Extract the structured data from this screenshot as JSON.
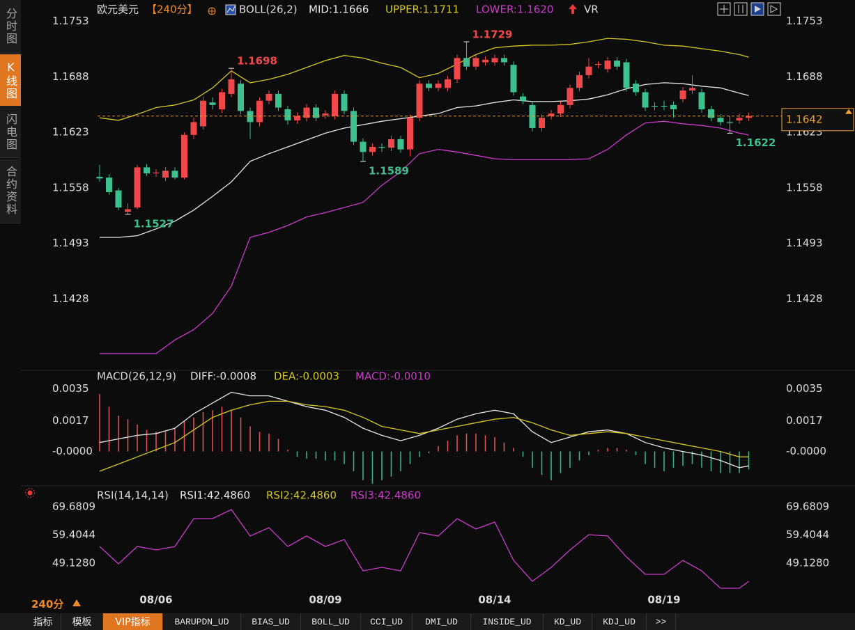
{
  "sidebar_tabs": [
    "分时图",
    "K线图",
    "闪电图",
    "合约资料"
  ],
  "header": {
    "symbol": "欧元美元",
    "period": "【240分】",
    "indicator": "BOLL(26,2)",
    "extra": "VR"
  },
  "price_panel": {
    "type": "candlestick",
    "categories": [
      null,
      null,
      null,
      null,
      null,
      null,
      "08/06",
      null,
      null,
      null,
      null,
      null,
      null,
      null,
      null,
      null,
      null,
      null,
      null,
      null,
      null,
      null,
      null,
      null,
      "08/09",
      null,
      null,
      null,
      null,
      null,
      null,
      null,
      null,
      null,
      null,
      null,
      null,
      null,
      null,
      null,
      null,
      null,
      "08/14",
      null,
      null,
      null,
      null,
      null,
      null,
      null,
      null,
      null,
      null,
      null,
      null,
      null,
      null,
      null,
      null,
      null,
      "08/19",
      null,
      null,
      null,
      null,
      null,
      null,
      null,
      null,
      null
    ],
    "candles": [
      [
        1.1571,
        1.1585,
        1.1565,
        1.1569
      ],
      [
        1.157,
        1.1574,
        1.155,
        1.1553
      ],
      [
        1.1555,
        1.1558,
        1.1532,
        1.1535
      ],
      [
        1.153,
        1.154,
        1.1527,
        1.1533
      ],
      [
        1.1535,
        1.1585,
        1.1533,
        1.1582
      ],
      [
        1.1582,
        1.1586,
        1.1572,
        1.1575
      ],
      [
        1.1575,
        1.158,
        1.1571,
        1.1576
      ],
      [
        1.157,
        1.1582,
        1.1566,
        1.1578
      ],
      [
        1.1578,
        1.1582,
        1.1568,
        1.157
      ],
      [
        1.157,
        1.1623,
        1.1568,
        1.162
      ],
      [
        1.162,
        1.164,
        1.1615,
        1.1635
      ],
      [
        1.163,
        1.1665,
        1.1626,
        1.166
      ],
      [
        1.1658,
        1.1664,
        1.165,
        1.1655
      ],
      [
        1.165,
        1.1674,
        1.1646,
        1.167
      ],
      [
        1.1668,
        1.1698,
        1.1664,
        1.1685
      ],
      [
        1.168,
        1.1684,
        1.1644,
        1.1648
      ],
      [
        1.1648,
        1.1652,
        1.1615,
        1.1635
      ],
      [
        1.1635,
        1.1664,
        1.163,
        1.166
      ],
      [
        1.166,
        1.1672,
        1.1656,
        1.1668
      ],
      [
        1.1668,
        1.1672,
        1.1648,
        1.1652
      ],
      [
        1.165,
        1.1654,
        1.1632,
        1.1637
      ],
      [
        1.1637,
        1.1646,
        1.1633,
        1.1642
      ],
      [
        1.164,
        1.1656,
        1.1636,
        1.1652
      ],
      [
        1.1652,
        1.1656,
        1.1636,
        1.164
      ],
      [
        1.1643,
        1.1649,
        1.1639,
        1.1645
      ],
      [
        1.1642,
        1.1672,
        1.1638,
        1.1668
      ],
      [
        1.1668,
        1.1672,
        1.1644,
        1.1648
      ],
      [
        1.1648,
        1.1652,
        1.1608,
        1.1612
      ],
      [
        1.1612,
        1.1616,
        1.1589,
        1.16
      ],
      [
        1.16,
        1.161,
        1.1596,
        1.1606
      ],
      [
        1.1606,
        1.161,
        1.16,
        1.1605
      ],
      [
        1.1605,
        1.1619,
        1.1601,
        1.1615
      ],
      [
        1.1615,
        1.1619,
        1.1599,
        1.1603
      ],
      [
        1.1603,
        1.1644,
        1.1595,
        1.164
      ],
      [
        1.164,
        1.1684,
        1.1636,
        1.168
      ],
      [
        1.168,
        1.1684,
        1.1671,
        1.1675
      ],
      [
        1.1675,
        1.1684,
        1.1671,
        1.168
      ],
      [
        1.1675,
        1.1689,
        1.1671,
        1.1685
      ],
      [
        1.1685,
        1.1714,
        1.1681,
        1.171
      ],
      [
        1.171,
        1.1729,
        1.1696,
        1.17
      ],
      [
        1.17,
        1.1714,
        1.1696,
        1.171
      ],
      [
        1.1705,
        1.1712,
        1.1701,
        1.1708
      ],
      [
        1.1705,
        1.1714,
        1.1701,
        1.171
      ],
      [
        1.171,
        1.1714,
        1.1701,
        1.1705
      ],
      [
        1.1702,
        1.1706,
        1.1666,
        1.167
      ],
      [
        1.1665,
        1.1669,
        1.1656,
        1.166
      ],
      [
        1.1655,
        1.1659,
        1.1624,
        1.1628
      ],
      [
        1.1628,
        1.1644,
        1.1624,
        1.164
      ],
      [
        1.1642,
        1.1649,
        1.1638,
        1.1645
      ],
      [
        1.1645,
        1.1659,
        1.1641,
        1.1655
      ],
      [
        1.1655,
        1.1679,
        1.1651,
        1.1675
      ],
      [
        1.1675,
        1.1694,
        1.1671,
        1.169
      ],
      [
        1.169,
        1.171,
        1.1686,
        1.17
      ],
      [
        1.1702,
        1.1706,
        1.1698,
        1.1703
      ],
      [
        1.1697,
        1.1711,
        1.1693,
        1.1707
      ],
      [
        1.1707,
        1.1711,
        1.1696,
        1.17
      ],
      [
        1.1705,
        1.1709,
        1.1671,
        1.1675
      ],
      [
        1.168,
        1.1684,
        1.1666,
        1.167
      ],
      [
        1.167,
        1.1674,
        1.1648,
        1.1652
      ],
      [
        1.1654,
        1.1658,
        1.1649,
        1.1653
      ],
      [
        1.1654,
        1.166,
        1.1649,
        1.1653
      ],
      [
        1.1655,
        1.1659,
        1.164,
        1.165
      ],
      [
        1.1662,
        1.1676,
        1.1658,
        1.1672
      ],
      [
        1.1672,
        1.169,
        1.1668,
        1.1675
      ],
      [
        1.167,
        1.1674,
        1.1646,
        1.165
      ],
      [
        1.165,
        1.1654,
        1.1636,
        1.164
      ],
      [
        1.164,
        1.1644,
        1.1631,
        1.1635
      ],
      [
        1.1635,
        1.1642,
        1.1622,
        1.1634
      ],
      [
        1.1637,
        1.1645,
        1.1633,
        1.164
      ],
      [
        1.164,
        1.1646,
        1.1636,
        1.1642
      ]
    ],
    "up_color": "#f0484a",
    "down_color": "#3cc08f",
    "ylim": [
      1.1346,
      1.176
    ],
    "yticks": [
      1.1753,
      1.1688,
      1.1623,
      1.1558,
      1.1493,
      1.1428
    ],
    "line_x": [
      0,
      2,
      4,
      6,
      8,
      10,
      12,
      14,
      16,
      18,
      20,
      22,
      24,
      26,
      28,
      30,
      32,
      34,
      36,
      38,
      40,
      42,
      44,
      46,
      48,
      50,
      52,
      54,
      56,
      58,
      60,
      62,
      64,
      66,
      68,
      69
    ],
    "series": [
      {
        "label": "MID:1.1666",
        "color": "#e8e8e8",
        "values": [
          1.15,
          1.15,
          1.1502,
          1.151,
          1.1519,
          1.1532,
          1.1548,
          1.1565,
          1.1589,
          1.1598,
          1.1606,
          1.1614,
          1.1622,
          1.1628,
          1.1632,
          1.1636,
          1.1639,
          1.1642,
          1.1645,
          1.1652,
          1.1654,
          1.1658,
          1.1661,
          1.1659,
          1.1659,
          1.166,
          1.1662,
          1.1667,
          1.1674,
          1.1679,
          1.1681,
          1.168,
          1.1677,
          1.1675,
          1.1669,
          1.1666
        ]
      },
      {
        "label": "UPPER:1.1711",
        "color": "#d7c81e",
        "values": [
          1.164,
          1.1637,
          1.1644,
          1.1652,
          1.1655,
          1.1661,
          1.1675,
          1.1695,
          1.1681,
          1.1685,
          1.1691,
          1.1699,
          1.1707,
          1.1713,
          1.171,
          1.1704,
          1.1699,
          1.1687,
          1.1692,
          1.1703,
          1.1714,
          1.1722,
          1.1724,
          1.1725,
          1.1725,
          1.1726,
          1.1729,
          1.1733,
          1.1732,
          1.1729,
          1.1725,
          1.1724,
          1.1721,
          1.1718,
          1.1714,
          1.1711
        ]
      },
      {
        "label": "LOWER:1.1620",
        "color": "#cc3ccc",
        "values": [
          1.1364,
          1.1364,
          1.1364,
          1.1364,
          1.138,
          1.1392,
          1.1411,
          1.1443,
          1.15,
          1.1506,
          1.1514,
          1.1524,
          1.1529,
          1.1535,
          1.1541,
          1.1561,
          1.1577,
          1.1598,
          1.1603,
          1.16,
          1.1596,
          1.1592,
          1.1591,
          1.1591,
          1.1591,
          1.1591,
          1.1592,
          1.1603,
          1.162,
          1.1634,
          1.1636,
          1.1633,
          1.1631,
          1.1628,
          1.1622,
          1.162
        ]
      }
    ],
    "extreme_labels": [
      1.1698,
      1.1729,
      1.1527,
      1.1589,
      1.1622
    ],
    "last_price": 1.1642,
    "last_price_color": "#f0a030"
  },
  "macd_panel": {
    "type": "macd",
    "title": "MACD(26,12,9)",
    "ylim": [
      -0.0018,
      0.0039
    ],
    "yticks": [
      0.0035,
      0.0017,
      {
        "value": 0,
        "label": "-0.0000"
      }
    ],
    "series": [
      {
        "label": "DIFF:-0.0008",
        "color": "#e8e8e8",
        "values": [
          0.0005,
          0.0007,
          0.0009,
          0.001,
          0.0013,
          0.0021,
          0.0027,
          0.0033,
          0.0031,
          0.0031,
          0.0028,
          0.0025,
          0.0023,
          0.0019,
          0.0013,
          0.0009,
          0.0006,
          0.0009,
          0.0013,
          0.0018,
          0.0021,
          0.0023,
          0.0021,
          0.0011,
          0.0005,
          0.0008,
          0.0011,
          0.0012,
          0.001,
          0.0005,
          0.0002,
          0,
          -0.0002,
          -0.0005,
          -0.0009,
          -0.0008
        ]
      },
      {
        "label": "DEA:-0.0003",
        "color": "#d7c81e",
        "values": [
          -0.0011,
          -0.0007,
          -0.0003,
          0.0001,
          0.0005,
          0.0012,
          0.0019,
          0.0023,
          0.0026,
          0.0028,
          0.0028,
          0.0026,
          0.0025,
          0.0023,
          0.0019,
          0.0014,
          0.0012,
          0.001,
          0.0012,
          0.0014,
          0.0016,
          0.0018,
          0.0019,
          0.0016,
          0.0012,
          0.0009,
          0.001,
          0.0011,
          0.001,
          0.0008,
          0.0006,
          0.0004,
          0.0002,
          0,
          -0.0003,
          -0.0003
        ]
      }
    ],
    "histogram": {
      "label": "MACD:-0.0010",
      "color": "#cc3ccc",
      "up_color": "#e05050",
      "down_color": "#3cb08a",
      "values": [
        0.0032,
        0.0025,
        0.002,
        0.0018,
        0.0015,
        0.0012,
        0.0011,
        0.0011,
        0.0013,
        0.0017,
        0.0019,
        0.0022,
        0.0023,
        0.0025,
        0.0023,
        0.0019,
        0.0014,
        0.0011,
        0.001,
        0.0007,
        0.0001,
        -0.0003,
        -0.0004,
        -0.0004,
        -0.0005,
        -0.0005,
        -0.0007,
        -0.0011,
        -0.0016,
        -0.0018,
        -0.0016,
        -0.0014,
        -0.0011,
        -0.0007,
        -0.0003,
        -0.0001,
        0.0003,
        0.0006,
        0.0009,
        0.001,
        0.001,
        0.0009,
        0.0008,
        0.0005,
        0.0002,
        -0.0003,
        -0.0009,
        -0.0013,
        -0.0016,
        -0.0012,
        -0.0009,
        -0.0005,
        -0.0002,
        0.0001,
        0.0002,
        0.0002,
        0.0001,
        -0.0002,
        -0.0007,
        -0.0009,
        -0.0011,
        -0.0009,
        -0.0008,
        -0.0007,
        -0.0009,
        -0.0011,
        -0.0012,
        -0.0012,
        -0.0012,
        -0.001
      ]
    }
  },
  "rsi_panel": {
    "type": "line",
    "title": "RSI(14,14,14)",
    "ylim": [
      37.45,
      72.22
    ],
    "yticks": [
      69.6809,
      59.4044,
      {
        "value": 49.128,
        "label": "49.1280"
      }
    ],
    "legend": [
      {
        "label": "RSI1:42.4860",
        "color": "#e8e8e8"
      },
      {
        "label": "RSI2:42.4860",
        "color": "#d7c81e"
      },
      {
        "label": "RSI3:42.4860",
        "color": "#cc3ccc"
      }
    ],
    "color": "#cc3ccc",
    "values": [
      55.21,
      48.87,
      55.21,
      53.94,
      55.21,
      65.37,
      65.37,
      68.67,
      59.02,
      62.07,
      55.21,
      59.02,
      55.21,
      57.75,
      46.33,
      47.6,
      46.33,
      60.29,
      59.02,
      65.37,
      61.56,
      64.1,
      50.14,
      42.52,
      47.6,
      53.94,
      59.53,
      59.02,
      51.41,
      45.06,
      45.06,
      50.14,
      46.33,
      39.99,
      39.99,
      42.49
    ]
  },
  "footer": {
    "period": "240分",
    "bottom_tabs": [
      "指标",
      "模板",
      "VIP指标",
      "BARUPDN_UD",
      "BIAS_UD",
      "BOLL_UD",
      "CCI_UD",
      "DMI_UD",
      "INSIDE_UD",
      "KD_UD",
      "KDJ_UD",
      ">>"
    ]
  }
}
